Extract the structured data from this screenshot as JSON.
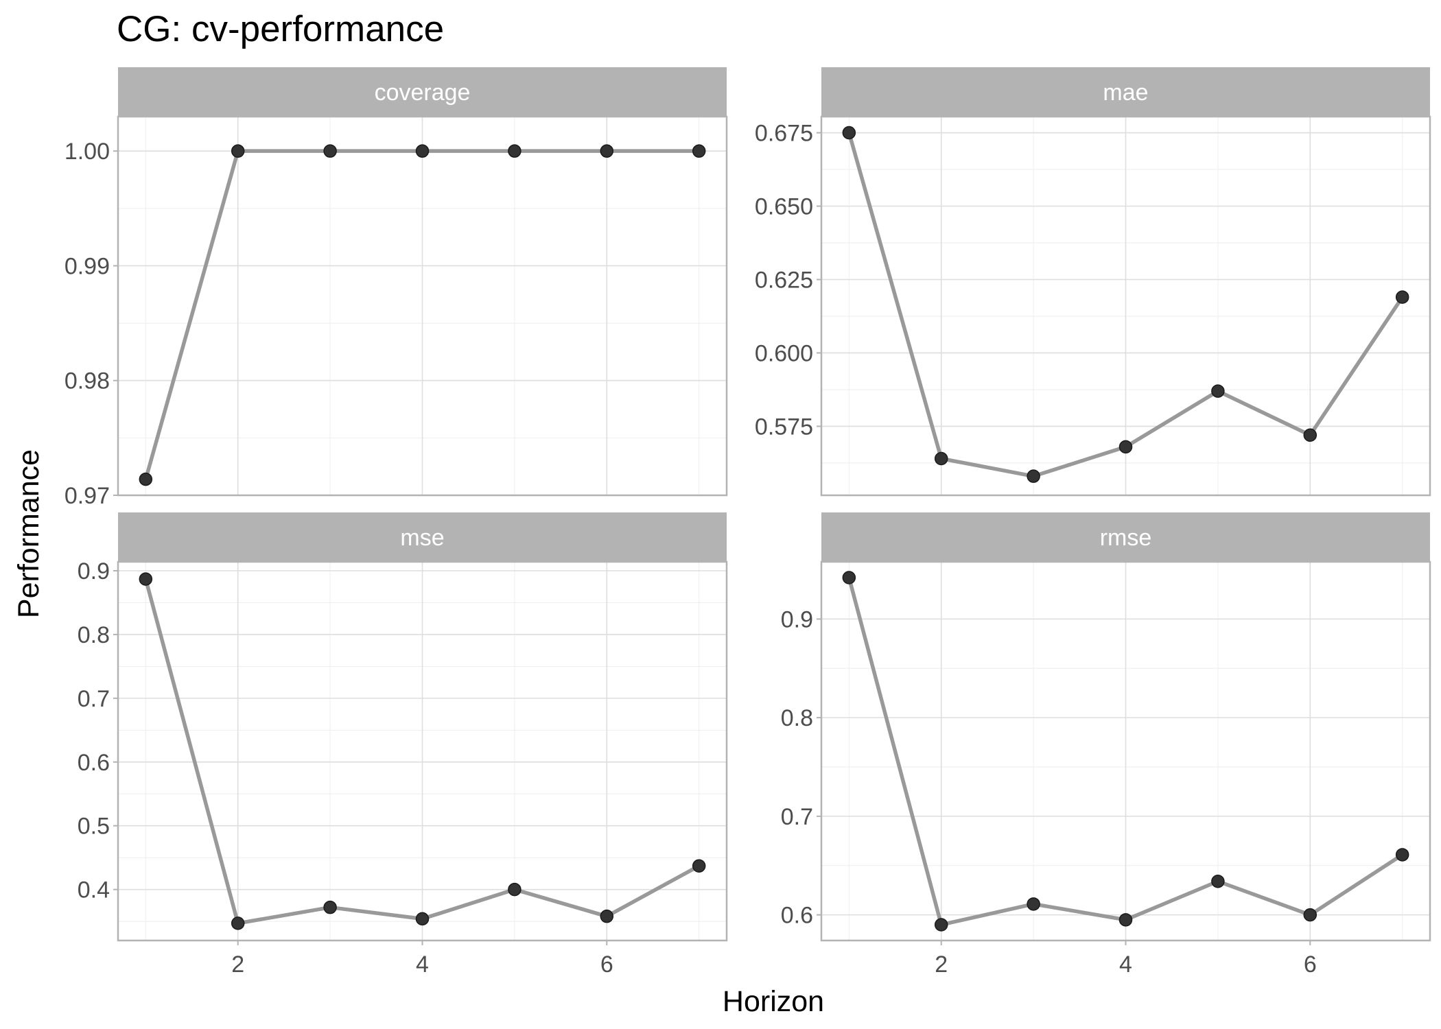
{
  "chart_data": {
    "type": "line",
    "title": "CG: cv-performance",
    "xlabel": "Horizon",
    "ylabel": "Performance",
    "grid": true,
    "x": [
      1,
      2,
      3,
      4,
      5,
      6,
      7
    ],
    "xlim": [
      0.7,
      7.3
    ],
    "x_ticks": [
      2,
      4,
      6
    ],
    "x_tick_labels": [
      "2",
      "4",
      "6"
    ],
    "line_color": "#999999",
    "point_color": "#333333",
    "strip_color": "#b3b3b3",
    "panels": [
      {
        "name": "coverage",
        "values": [
          0.9714,
          1.0,
          1.0,
          1.0,
          1.0,
          1.0,
          1.0
        ],
        "ylim": [
          0.97,
          1.003
        ],
        "y_ticks": [
          0.97,
          0.98,
          0.99,
          1.0
        ],
        "y_tick_labels": [
          "0.97",
          "0.98",
          "0.99",
          "1.00"
        ],
        "y_minor": [
          0.975,
          0.985,
          0.995
        ]
      },
      {
        "name": "mae",
        "values": [
          0.675,
          0.564,
          0.558,
          0.568,
          0.587,
          0.572,
          0.619
        ],
        "ylim": [
          0.5515,
          0.6805
        ],
        "y_ticks": [
          0.575,
          0.6,
          0.625,
          0.65,
          0.675
        ],
        "y_tick_labels": [
          "0.575",
          "0.600",
          "0.625",
          "0.650",
          "0.675"
        ],
        "y_minor": [
          0.5625,
          0.5875,
          0.6125,
          0.6375,
          0.6625
        ]
      },
      {
        "name": "mse",
        "values": [
          0.887,
          0.347,
          0.372,
          0.354,
          0.4,
          0.358,
          0.437
        ],
        "ylim": [
          0.32,
          0.914
        ],
        "y_ticks": [
          0.4,
          0.5,
          0.6,
          0.7,
          0.8,
          0.9
        ],
        "y_tick_labels": [
          "0.4",
          "0.5",
          "0.6",
          "0.7",
          "0.8",
          "0.9"
        ],
        "y_minor": [
          0.35,
          0.45,
          0.55,
          0.65,
          0.75,
          0.85
        ]
      },
      {
        "name": "rmse",
        "values": [
          0.942,
          0.59,
          0.611,
          0.595,
          0.634,
          0.6,
          0.661
        ],
        "ylim": [
          0.574,
          0.958
        ],
        "y_ticks": [
          0.6,
          0.7,
          0.8,
          0.9
        ],
        "y_tick_labels": [
          "0.6",
          "0.7",
          "0.8",
          "0.9"
        ],
        "y_minor": [
          0.65,
          0.75,
          0.85
        ]
      }
    ]
  }
}
